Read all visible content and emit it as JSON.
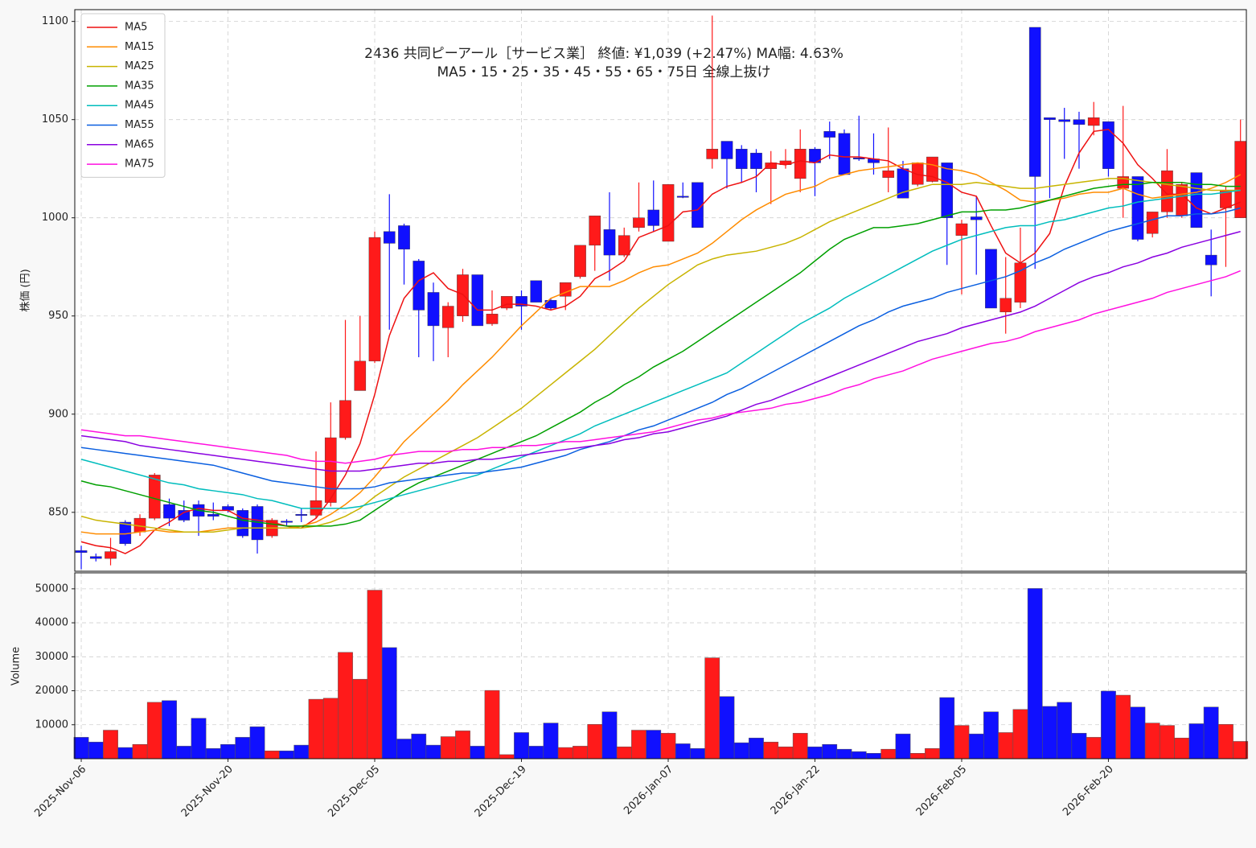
{
  "chart_data": [
    {
      "type": "candlestick",
      "title": "2436  共同ピーアール［サービス業］ 終値: ¥1,039 (+2.47%)  MA幅: 4.63%",
      "subtitle": "MA5・15・25・35・45・55・65・75日 全線上抜け",
      "ylabel": "株価 (円)",
      "categories": [
        "2025-Nov-06",
        null,
        null,
        null,
        null,
        null,
        null,
        null,
        null,
        null,
        "2025-Nov-20",
        null,
        null,
        null,
        null,
        null,
        null,
        null,
        null,
        null,
        "2025-Dec-05",
        null,
        null,
        null,
        null,
        null,
        null,
        null,
        null,
        null,
        "2025-Dec-19",
        null,
        null,
        null,
        null,
        null,
        null,
        null,
        null,
        null,
        "2026-Jan-07",
        null,
        null,
        null,
        null,
        null,
        null,
        null,
        null,
        null,
        "2026-Jan-22",
        null,
        null,
        null,
        null,
        null,
        null,
        null,
        null,
        null,
        "2026-Feb-05",
        null,
        null,
        null,
        null,
        null,
        null,
        null,
        null,
        null,
        "2026-Feb-20",
        null,
        null,
        null,
        null,
        null,
        null,
        null,
        null,
        null
      ],
      "open": [
        830.5,
        827.5,
        826.5,
        845,
        840,
        847,
        854,
        851,
        854,
        849,
        853,
        851,
        853,
        838,
        845.5,
        849,
        848.5,
        855,
        888,
        912,
        927,
        993,
        996,
        978,
        962,
        944,
        950,
        971,
        946,
        954,
        960,
        968,
        958,
        960,
        970,
        986,
        994,
        981,
        995,
        1004,
        988,
        1011,
        1018,
        1030,
        1039,
        1035,
        1033,
        1025,
        1027,
        1020,
        1035,
        1044,
        1043,
        1030.5,
        1030,
        1020.5,
        1025,
        1017,
        1018.5,
        1028,
        991,
        1000.5,
        984,
        952,
        957,
        1097,
        1051,
        1050,
        1050,
        1047,
        1049,
        1015,
        1021,
        992,
        1003,
        1001,
        1023,
        981,
        1005,
        1000
      ],
      "high": [
        833,
        829,
        837,
        846,
        849,
        870,
        857,
        856,
        856,
        855,
        854,
        852,
        854,
        847,
        846.5,
        852,
        881,
        906,
        948,
        950,
        993,
        1012,
        997,
        979,
        967,
        957,
        974,
        971,
        963,
        960,
        963,
        968,
        959,
        967,
        986,
        1001,
        1013,
        995,
        1018,
        1019,
        1017,
        1018,
        1018,
        1103,
        1039,
        1037,
        1035,
        1034,
        1035,
        1045,
        1036,
        1049,
        1045,
        1052,
        1043,
        1046,
        1029,
        1028,
        1031,
        1028,
        999,
        1011,
        984,
        980,
        995,
        1097,
        1051,
        1056,
        1054,
        1059,
        1049,
        1057,
        1021,
        1003,
        1035,
        1018,
        1023,
        994,
        1016,
        1050
      ],
      "low": [
        821,
        825,
        823,
        833,
        838,
        846,
        843,
        845,
        838,
        846,
        850,
        837,
        829,
        837,
        843,
        845,
        847,
        853,
        887,
        912,
        926,
        943,
        966,
        929,
        927,
        929,
        947,
        945,
        945,
        953,
        943,
        957,
        953,
        953,
        969,
        973,
        968,
        980,
        993,
        993,
        988,
        1010,
        995,
        1025,
        1015,
        1018,
        1013,
        1007,
        1025,
        1013,
        1011,
        1030,
        1022,
        1029,
        1022,
        1013,
        1010,
        1016,
        1018,
        976,
        961,
        971,
        954,
        941,
        954,
        974,
        1010,
        1030,
        1025,
        1042,
        1021,
        1000,
        988,
        990,
        1000,
        1000,
        995,
        960,
        975,
        1000
      ],
      "close": [
        829.5,
        826.5,
        830,
        834,
        847,
        869,
        847,
        846,
        848,
        848,
        851,
        838,
        836,
        846,
        845,
        848.5,
        856,
        888,
        907,
        927,
        990,
        987,
        984,
        953,
        945,
        955,
        971,
        945,
        951,
        960,
        955,
        957,
        954,
        967,
        986,
        1001,
        981,
        991,
        1000,
        996,
        1017,
        1010.5,
        995,
        1035,
        1030,
        1025,
        1025,
        1028,
        1029,
        1035,
        1028,
        1041,
        1022,
        1030,
        1028,
        1024,
        1010,
        1028,
        1031,
        1000,
        997,
        999,
        954,
        959,
        977,
        1021,
        1050,
        1049,
        1047.5,
        1051,
        1025,
        1021,
        989,
        1003,
        1024,
        1017,
        995,
        976,
        1014,
        1039
      ],
      "up_color": "#ff1a1a",
      "down_color": "#1010ff",
      "series": [
        {
          "name": "MA5",
          "color": "#ee1111",
          "values": [
            835,
            833,
            832,
            829,
            833,
            841,
            845,
            850,
            852,
            851,
            851,
            847,
            846,
            845,
            843,
            842,
            847,
            857,
            869,
            885,
            910,
            940,
            959,
            968,
            972,
            964,
            961,
            953,
            953,
            956,
            956,
            955,
            953,
            955,
            960,
            969,
            973,
            978,
            990,
            993,
            996,
            1003,
            1004,
            1012,
            1016,
            1018,
            1021,
            1028,
            1027,
            1029,
            1028,
            1032,
            1031,
            1031,
            1030,
            1029,
            1025,
            1022,
            1021,
            1018,
            1013,
            1011,
            996,
            982,
            977,
            982,
            992,
            1016,
            1033,
            1044,
            1045,
            1038,
            1027,
            1020,
            1012,
            1012,
            1005,
            1002,
            1005,
            1008
          ]
        },
        {
          "name": "MA15",
          "color": "#ff8c00",
          "values": [
            840,
            839,
            839,
            839,
            840,
            841,
            840,
            840,
            840,
            841,
            842,
            842,
            842,
            842,
            842,
            843,
            845,
            849,
            854,
            860,
            868,
            877,
            886,
            893,
            900,
            907,
            915,
            922,
            929,
            937,
            945,
            952,
            959,
            962,
            965,
            965,
            965,
            968,
            972,
            975,
            976,
            979,
            982,
            987,
            993,
            999,
            1004,
            1008,
            1012,
            1014,
            1016,
            1020,
            1022,
            1024,
            1025,
            1026,
            1027,
            1028,
            1027,
            1025,
            1024,
            1022,
            1018,
            1014,
            1009,
            1008,
            1009,
            1010,
            1012,
            1013,
            1013,
            1015,
            1012,
            1010,
            1011,
            1012,
            1013,
            1015,
            1018,
            1022
          ]
        },
        {
          "name": "MA25",
          "color": "#c8b400",
          "values": [
            848,
            846,
            845,
            844,
            843,
            842,
            841,
            840,
            840,
            840,
            841,
            842,
            842,
            842,
            842,
            842,
            843,
            845,
            848,
            852,
            858,
            863,
            868,
            872,
            876,
            880,
            884,
            888,
            893,
            898,
            903,
            909,
            915,
            921,
            927,
            933,
            940,
            947,
            954,
            960,
            966,
            971,
            976,
            979,
            981,
            982,
            983,
            985,
            987,
            990,
            994,
            998,
            1001,
            1004,
            1007,
            1010,
            1013,
            1015,
            1017,
            1017,
            1017,
            1018,
            1017,
            1016,
            1015,
            1015,
            1016,
            1017,
            1018,
            1019,
            1020,
            1020,
            1019,
            1018,
            1017,
            1016,
            1015,
            1014,
            1014,
            1014
          ]
        },
        {
          "name": "MA35",
          "color": "#00a000",
          "values": [
            866,
            864,
            863,
            861,
            859,
            857,
            855,
            853,
            851,
            850,
            848,
            846,
            845,
            844,
            843,
            843,
            843,
            843,
            844,
            846,
            851,
            856,
            861,
            865,
            868,
            871,
            874,
            877,
            880,
            883,
            886,
            889,
            893,
            897,
            901,
            906,
            910,
            915,
            919,
            924,
            928,
            932,
            937,
            942,
            947,
            952,
            957,
            962,
            967,
            972,
            978,
            984,
            989,
            992,
            995,
            995,
            996,
            997,
            999,
            1001,
            1003,
            1003,
            1004,
            1004,
            1005,
            1007,
            1009,
            1011,
            1013,
            1015,
            1016,
            1017,
            1017,
            1018,
            1018,
            1018,
            1017,
            1017,
            1016,
            1016
          ]
        },
        {
          "name": "MA45",
          "color": "#00bdbd",
          "values": [
            877,
            875,
            873,
            871,
            869,
            867,
            865,
            864,
            862,
            861,
            860,
            859,
            857,
            856,
            854,
            852,
            852,
            852,
            852,
            853,
            855,
            857,
            859,
            861,
            863,
            865,
            867,
            869,
            872,
            875,
            878,
            881,
            884,
            887,
            890,
            894,
            897,
            900,
            903,
            906,
            909,
            912,
            915,
            918,
            921,
            926,
            931,
            936,
            941,
            946,
            950,
            954,
            959,
            963,
            967,
            971,
            975,
            979,
            983,
            986,
            989,
            991,
            993,
            995,
            996,
            996,
            998,
            999,
            1001,
            1003,
            1005,
            1006,
            1008,
            1009,
            1010,
            1011,
            1012,
            1012,
            1013,
            1014
          ]
        },
        {
          "name": "MA55",
          "color": "#0a5fe0",
          "values": [
            883,
            882,
            881,
            880,
            879,
            878,
            877,
            876,
            875,
            874,
            872,
            870,
            868,
            866,
            865,
            864,
            863,
            862,
            862,
            862,
            863,
            865,
            866,
            867,
            868,
            869,
            870,
            870,
            871,
            872,
            873,
            875,
            877,
            879,
            882,
            884,
            886,
            889,
            892,
            894,
            897,
            900,
            903,
            906,
            910,
            913,
            917,
            921,
            925,
            929,
            933,
            937,
            941,
            945,
            948,
            952,
            955,
            957,
            959,
            962,
            964,
            966,
            968,
            970,
            973,
            977,
            980,
            984,
            987,
            990,
            993,
            995,
            997,
            999,
            1001,
            1001,
            1002,
            1002,
            1003,
            1005
          ]
        },
        {
          "name": "MA65",
          "color": "#8a00e0",
          "values": [
            889,
            888,
            887,
            886,
            884,
            883,
            882,
            881,
            880,
            879,
            878,
            877,
            876,
            875,
            874,
            873,
            872,
            871,
            871,
            871,
            872,
            873,
            874,
            875,
            875,
            876,
            876,
            877,
            877,
            878,
            879,
            880,
            881,
            882,
            883,
            884,
            885,
            887,
            888,
            890,
            891,
            893,
            895,
            897,
            899,
            902,
            905,
            907,
            910,
            913,
            916,
            919,
            922,
            925,
            928,
            931,
            934,
            937,
            939,
            941,
            944,
            946,
            948,
            950,
            952,
            955,
            959,
            963,
            967,
            970,
            972,
            975,
            977,
            980,
            982,
            985,
            987,
            989,
            991,
            993
          ]
        },
        {
          "name": "MA75",
          "color": "#ff10e0",
          "values": [
            892,
            891,
            890,
            889,
            889,
            888,
            887,
            886,
            885,
            884,
            883,
            882,
            881,
            880,
            879,
            877,
            876,
            876,
            875,
            876,
            877,
            879,
            880,
            881,
            881,
            881,
            882,
            882,
            883,
            883,
            884,
            884,
            885,
            886,
            886,
            887,
            888,
            889,
            890,
            891,
            893,
            895,
            897,
            898,
            900,
            901,
            902,
            903,
            905,
            906,
            908,
            910,
            913,
            915,
            918,
            920,
            922,
            925,
            928,
            930,
            932,
            934,
            936,
            937,
            939,
            942,
            944,
            946,
            948,
            951,
            953,
            955,
            957,
            959,
            962,
            964,
            966,
            968,
            970,
            973
          ]
        }
      ],
      "ylim": [
        820,
        1106
      ],
      "yticks": [
        850,
        900,
        950,
        1000,
        1050,
        1100
      ],
      "grid": true,
      "legend": "upper left"
    },
    {
      "type": "bar",
      "ylabel": "Volume",
      "values": [
        6300,
        4900,
        8400,
        3300,
        4200,
        16600,
        17100,
        3700,
        11900,
        3000,
        4200,
        6300,
        9400,
        2300,
        2300,
        4000,
        17500,
        17800,
        31300,
        23400,
        49600,
        32700,
        5800,
        7300,
        4000,
        6500,
        8200,
        3700,
        20100,
        1200,
        7700,
        3700,
        10500,
        3300,
        3700,
        10100,
        13800,
        3500,
        8400,
        8400,
        7500,
        4400,
        3000,
        29700,
        18300,
        4700,
        6100,
        4900,
        3500,
        7500,
        3500,
        4200,
        2800,
        2100,
        1600,
        2800,
        7300,
        1600,
        3000,
        18000,
        9800,
        7300,
        13800,
        7700,
        14500,
        50100,
        15400,
        16600,
        7500,
        6300,
        19900,
        18700,
        15200,
        10500,
        9800,
        6100,
        10300,
        15200,
        10100,
        5100
      ],
      "ylim": [
        0,
        54700
      ],
      "yticks": [
        10000,
        20000,
        30000,
        40000,
        50000
      ],
      "grid": true
    }
  ]
}
